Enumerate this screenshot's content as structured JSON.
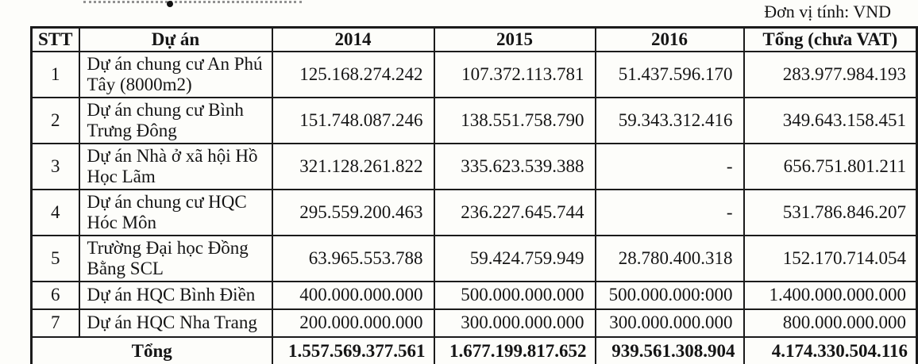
{
  "page": {
    "unit_label": "Đơn vị tính: VND"
  },
  "table": {
    "columns": [
      "STT",
      "Dự án",
      "2014",
      "2015",
      "2016",
      "Tổng (chưa VAT)"
    ],
    "rows": [
      [
        "1",
        "Dự án chung cư An Phú Tây (8000m2)",
        "125.168.274.242",
        "107.372.113.781",
        "51.437.596.170",
        "283.977.984.193"
      ],
      [
        "2",
        "Dự án chung cư Bình Trưng Đông",
        "151.748.087.246",
        "138.551.758.790",
        "59.343.312.416",
        "349.643.158.451"
      ],
      [
        "3",
        "Dự án Nhà ở xã hội Hồ Học Lãm",
        "321.128.261.822",
        "335.623.539.388",
        "-",
        "656.751.801.211"
      ],
      [
        "4",
        "Dự án chung cư HQC Hóc Môn",
        "295.559.200.463",
        "236.227.645.744",
        "-",
        "531.786.846.207"
      ],
      [
        "5",
        "Trường Đại học Đồng Bằng SCL",
        "63.965.553.788",
        "59.424.759.949",
        "28.780.400.318",
        "152.170.714.054"
      ],
      [
        "6",
        "Dự án HQC Bình Điền",
        "400.000.000.000",
        "500.000.000.000",
        "500.000.000:000",
        "1.400.000.000.000"
      ],
      [
        "7",
        "Dự án HQC Nha Trang",
        "200.000.000.000",
        "300.000.000.000",
        "300.000.000.000",
        "800.000.000.000"
      ]
    ],
    "footer": {
      "label": "Tổng",
      "values": [
        "1.557.569.377.561",
        "1.677.199.817.652",
        "939.561.308.904",
        "4.174.330.504.116"
      ]
    }
  },
  "colors": {
    "paper": "#fdfdfa",
    "border": "#1b1b1b",
    "text": "#151515"
  }
}
